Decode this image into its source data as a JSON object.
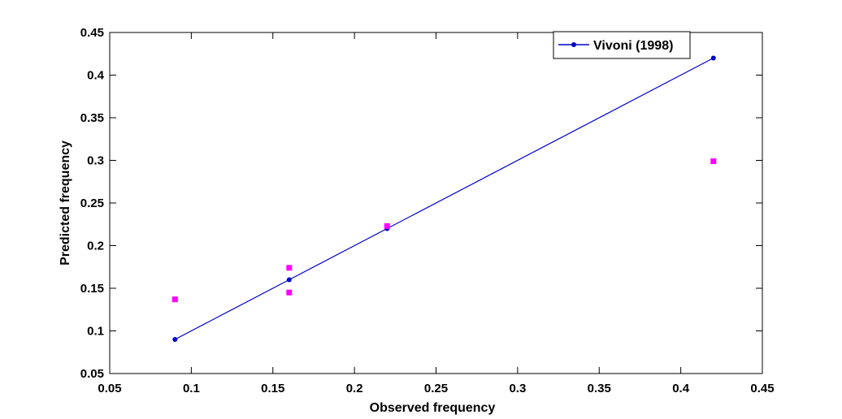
{
  "chart_data": {
    "type": "scatter",
    "xlabel": "Observed frequency",
    "ylabel": "Predicted frequency",
    "xlim": [
      0.05,
      0.45
    ],
    "ylim": [
      0.05,
      0.45
    ],
    "xticks": [
      "0.05",
      "0.1",
      "0.15",
      "0.2",
      "0.25",
      "0.3",
      "0.35",
      "0.4",
      "0.45"
    ],
    "yticks": [
      "0.05",
      "0.1",
      "0.15",
      "0.2",
      "0.25",
      "0.3",
      "0.35",
      "0.4",
      "0.45"
    ],
    "grid": false,
    "legend_position": "top-right",
    "series": [
      {
        "name": "Vivoni (1998)",
        "style": "line-with-dot-markers",
        "color": "#0000cc",
        "x": [
          0.09,
          0.16,
          0.22,
          0.42
        ],
        "y": [
          0.09,
          0.16,
          0.22,
          0.42
        ]
      },
      {
        "style": "square-markers",
        "color": "#ff00ff",
        "x": [
          0.09,
          0.16,
          0.16,
          0.22,
          0.42
        ],
        "y": [
          0.137,
          0.174,
          0.145,
          0.223,
          0.299
        ]
      }
    ]
  }
}
